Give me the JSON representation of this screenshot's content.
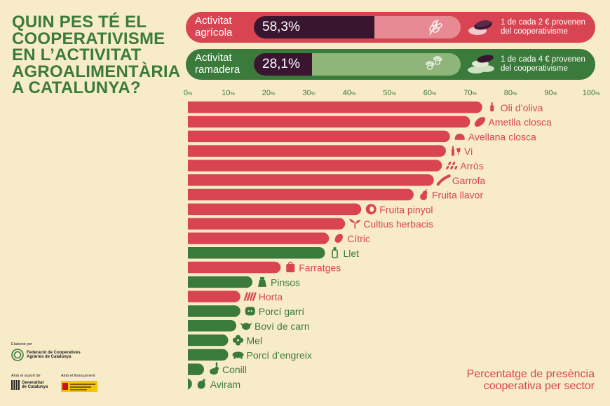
{
  "title": "QUIN PES TÉ EL COOPERATIVISME EN L’ACTIVITAT AGROALIMENTÀRIA A CATALUNYA?",
  "agricola": {
    "label": "Activitat agrícola",
    "value": 58.3,
    "value_text": "58,3%",
    "note": "1 de cada 2 € provenen del cooperativisme",
    "color": "#d94452",
    "track_color": "#e88a93",
    "icon1": "wheat-icon",
    "icon2": "coins-icon"
  },
  "ramadera": {
    "label": "Activitat ramadera",
    "value": 28.1,
    "value_text": "28,1%",
    "note": "1 de cada 4 € provenen del cooperativisme",
    "color": "#3a7a3a",
    "track_color": "#8fb57a",
    "icon1": "paw-prints-icon",
    "icon2": "coins-icon"
  },
  "colors": {
    "agricola": "#d94452",
    "ramadera": "#3a7a3a",
    "background": "#f8ecc8"
  },
  "chart_data": {
    "type": "bar",
    "orientation": "horizontal",
    "xlim": [
      0,
      100
    ],
    "ticks": [
      "0%",
      "10%",
      "20%",
      "30%",
      "40%",
      "50%",
      "60%",
      "70%",
      "80%",
      "90%",
      "100%"
    ],
    "categories": [
      "Oli d’oliva",
      "Ametlla closca",
      "Avellana closca",
      "Vi",
      "Arròs",
      "Garrofa",
      "Fruita llavor",
      "Fruita pinyol",
      "Cultius herbacis",
      "Cítric",
      "Llet",
      "Farratges",
      "Pinsos",
      "Horta",
      "Porcí garrí",
      "Boví de carn",
      "Mel",
      "Porcí d’engreix",
      "Conill",
      "Aviram"
    ],
    "values": [
      73,
      70,
      65,
      64,
      63,
      61,
      56,
      43,
      39,
      35,
      34,
      23,
      16,
      13,
      13,
      12,
      10,
      10,
      4,
      1
    ],
    "groups": [
      "agricola",
      "agricola",
      "agricola",
      "agricola",
      "agricola",
      "agricola",
      "agricola",
      "agricola",
      "agricola",
      "agricola",
      "ramadera",
      "agricola",
      "ramadera",
      "agricola",
      "ramadera",
      "ramadera",
      "ramadera",
      "ramadera",
      "ramadera",
      "ramadera"
    ],
    "icons": [
      "bottle-icon",
      "almond-icon",
      "hazelnut-icon",
      "wine-icon",
      "rice-icon",
      "carob-icon",
      "pear-icon",
      "peach-icon",
      "sprout-icon",
      "lemon-icon",
      "milk-icon",
      "hay-icon",
      "feed-sack-icon",
      "vegetables-icon",
      "piglet-icon",
      "cow-icon",
      "flower-icon",
      "pig-icon",
      "rabbit-icon",
      "chicken-icon"
    ]
  },
  "footer": {
    "line1": "Percentatge de presència",
    "line2": "cooperativa per sector"
  },
  "credits": {
    "elaborat": "Elaborat per",
    "fcac_line1": "Federació de Cooperatives",
    "fcac_line2": "Agràries de Catalunya",
    "suport": "Amb el suport de",
    "gencat_line1": "Generalitat",
    "gencat_line2": "de Catalunya",
    "financament": "Amb el finançament"
  }
}
